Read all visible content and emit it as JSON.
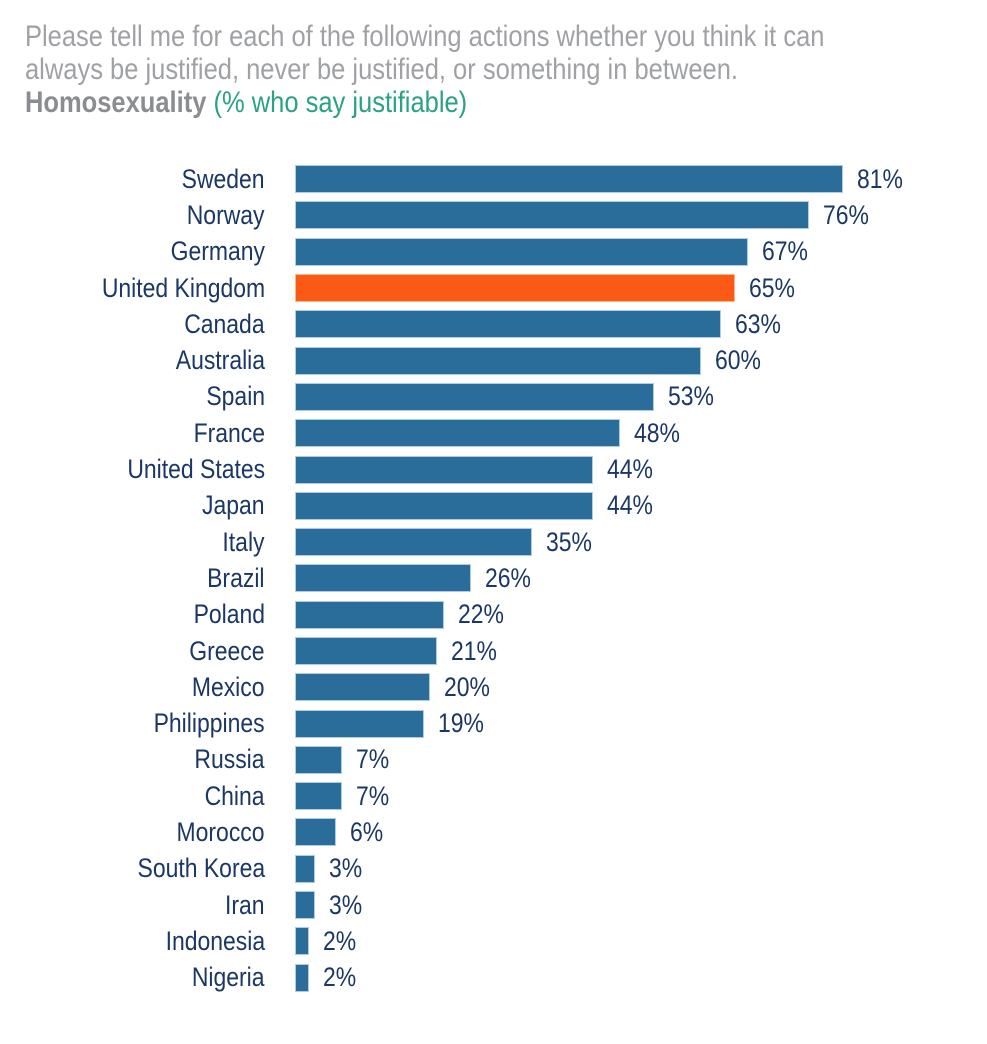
{
  "header": {
    "question_lines": [
      "Please tell me for each of the following actions whether you think it can",
      "always be justified, never be justified, or something in between."
    ],
    "topic": "Homosexuality",
    "subtitle": "(% who say justifiable)"
  },
  "colors": {
    "background": "#ffffff",
    "bar": "#2b6d9a",
    "bar_border": "#aecde1",
    "highlight": "#fb5a16",
    "highlight_border": "#fdb38c",
    "label_text": "#1a3766",
    "question_text": "#9fa1a4",
    "topic_text": "#8b8d90",
    "subtitle_text": "#29a285"
  },
  "chart_data": {
    "type": "bar",
    "orientation": "horizontal",
    "title": "Homosexuality (% who say justifiable)",
    "xlabel": "",
    "ylabel": "",
    "xlim": [
      0,
      100
    ],
    "grid": false,
    "legend": false,
    "value_suffix": "%",
    "highlight_category": "United Kingdom",
    "categories": [
      "Sweden",
      "Norway",
      "Germany",
      "United Kingdom",
      "Canada",
      "Australia",
      "Spain",
      "France",
      "United States",
      "Japan",
      "Italy",
      "Brazil",
      "Poland",
      "Greece",
      "Mexico",
      "Philippines",
      "Russia",
      "China",
      "Morocco",
      "South Korea",
      "Iran",
      "Indonesia",
      "Nigeria"
    ],
    "values": [
      81,
      76,
      67,
      65,
      63,
      60,
      53,
      48,
      44,
      44,
      35,
      26,
      22,
      21,
      20,
      19,
      7,
      7,
      6,
      3,
      3,
      2,
      2
    ]
  }
}
